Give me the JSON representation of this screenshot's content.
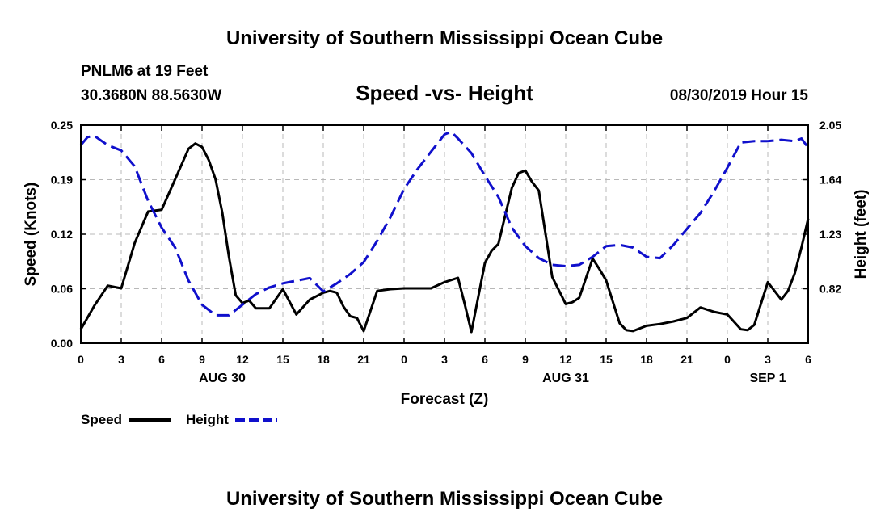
{
  "header": {
    "title": "University of Southern Mississippi Ocean Cube",
    "station": "PNLM6 at 19 Feet",
    "coords": "30.3680N 88.5630W",
    "datetime": "08/30/2019 Hour 15"
  },
  "footer": {
    "title": "University of Southern Mississippi Ocean Cube"
  },
  "chart_data": {
    "type": "line",
    "title": "Speed -vs- Height",
    "xlabel": "Forecast (Z)",
    "ylabel_left": "Speed (Knots)",
    "ylabel_right": "Height (feet)",
    "x_unit": "forecast hour from 08/30 00Z",
    "xlim": [
      0,
      54
    ],
    "ylim_left": [
      0.0,
      0.25
    ],
    "ylim_right": [
      0.41,
      2.05
    ],
    "grid": true,
    "legend_position": "bottom-left",
    "x_ticks": [
      {
        "x": 0,
        "label": "0"
      },
      {
        "x": 3,
        "label": "3"
      },
      {
        "x": 6,
        "label": "6"
      },
      {
        "x": 9,
        "label": "9"
      },
      {
        "x": 12,
        "label": "12"
      },
      {
        "x": 15,
        "label": "15"
      },
      {
        "x": 18,
        "label": "18"
      },
      {
        "x": 21,
        "label": "21"
      },
      {
        "x": 24,
        "label": "0"
      },
      {
        "x": 27,
        "label": "3"
      },
      {
        "x": 30,
        "label": "6"
      },
      {
        "x": 33,
        "label": "9"
      },
      {
        "x": 36,
        "label": "12"
      },
      {
        "x": 39,
        "label": "15"
      },
      {
        "x": 42,
        "label": "18"
      },
      {
        "x": 45,
        "label": "21"
      },
      {
        "x": 48,
        "label": "0"
      },
      {
        "x": 51,
        "label": "3"
      },
      {
        "x": 54,
        "label": "6"
      }
    ],
    "date_labels": [
      {
        "x": 10.5,
        "label": "AUG 30"
      },
      {
        "x": 36,
        "label": "AUG 31"
      },
      {
        "x": 51,
        "label": "SEP 1"
      }
    ],
    "y_ticks_left": [
      {
        "value": 0.0,
        "label": "0.00"
      },
      {
        "value": 0.0625,
        "label": "0.06"
      },
      {
        "value": 0.125,
        "label": "0.12"
      },
      {
        "value": 0.1875,
        "label": "0.19"
      },
      {
        "value": 0.25,
        "label": "0.25"
      }
    ],
    "y_ticks_right": [
      {
        "value": 0.82,
        "label": "0.82"
      },
      {
        "value": 1.23,
        "label": "1.23"
      },
      {
        "value": 1.64,
        "label": "1.64"
      },
      {
        "value": 2.05,
        "label": "2.05"
      }
    ],
    "series": [
      {
        "name": "Speed",
        "axis": "left",
        "color": "#000000",
        "style": "solid",
        "x": [
          0,
          1,
          2,
          3,
          4,
          5,
          6,
          7,
          8,
          8.5,
          9,
          9.5,
          10,
          10.5,
          11,
          11.5,
          12,
          12.5,
          13,
          14,
          15,
          16,
          17,
          18,
          18.5,
          19,
          19.5,
          20,
          20.5,
          21,
          22,
          23,
          24,
          25,
          26,
          27,
          28,
          28.5,
          29,
          30,
          30.5,
          31,
          32,
          32.5,
          33,
          33.5,
          34,
          35,
          36,
          36.5,
          37,
          38,
          38.5,
          39,
          40,
          40.5,
          41,
          42,
          43,
          44,
          45,
          46,
          47,
          48,
          49,
          49.5,
          50,
          51,
          52,
          52.5,
          53,
          53.5,
          54
        ],
        "y": [
          0.016,
          0.043,
          0.066,
          0.063,
          0.115,
          0.151,
          0.153,
          0.188,
          0.223,
          0.229,
          0.225,
          0.21,
          0.188,
          0.15,
          0.099,
          0.055,
          0.046,
          0.049,
          0.04,
          0.04,
          0.062,
          0.033,
          0.05,
          0.058,
          0.06,
          0.058,
          0.042,
          0.031,
          0.029,
          0.014,
          0.06,
          0.062,
          0.063,
          0.063,
          0.063,
          0.07,
          0.075,
          0.045,
          0.013,
          0.092,
          0.106,
          0.114,
          0.178,
          0.195,
          0.198,
          0.185,
          0.175,
          0.076,
          0.045,
          0.047,
          0.052,
          0.097,
          0.085,
          0.072,
          0.023,
          0.015,
          0.014,
          0.02,
          0.022,
          0.025,
          0.029,
          0.041,
          0.036,
          0.033,
          0.016,
          0.015,
          0.021,
          0.07,
          0.05,
          0.06,
          0.08,
          0.11,
          0.143
        ]
      },
      {
        "name": "Height",
        "axis": "right",
        "color": "#1010cc",
        "style": "dashed",
        "x": [
          0,
          0.5,
          1,
          2,
          3,
          4,
          5,
          6,
          7,
          8,
          9,
          10,
          11,
          12,
          13,
          14,
          15,
          16,
          17,
          18,
          19,
          20,
          21,
          22,
          23,
          24,
          25,
          26,
          27,
          27.5,
          28,
          29,
          30,
          31,
          32,
          33,
          34,
          35,
          36,
          37,
          38,
          39,
          40,
          41,
          42,
          43,
          44,
          45,
          46,
          47,
          48,
          49,
          50,
          51,
          52,
          53,
          53.5,
          54
        ],
        "y": [
          1.9,
          1.96,
          1.97,
          1.9,
          1.86,
          1.74,
          1.48,
          1.28,
          1.13,
          0.88,
          0.7,
          0.62,
          0.62,
          0.7,
          0.78,
          0.83,
          0.86,
          0.88,
          0.9,
          0.8,
          0.86,
          0.93,
          1.02,
          1.18,
          1.36,
          1.57,
          1.72,
          1.85,
          1.98,
          2.0,
          1.95,
          1.84,
          1.67,
          1.51,
          1.28,
          1.14,
          1.05,
          1.0,
          0.99,
          1.0,
          1.06,
          1.14,
          1.15,
          1.13,
          1.06,
          1.05,
          1.15,
          1.27,
          1.39,
          1.55,
          1.73,
          1.92,
          1.93,
          1.93,
          1.94,
          1.93,
          1.95,
          1.88
        ]
      }
    ],
    "legend": [
      {
        "label": "Speed",
        "color": "#000000",
        "style": "solid"
      },
      {
        "label": "Height",
        "color": "#1010cc",
        "style": "dashed"
      }
    ]
  }
}
